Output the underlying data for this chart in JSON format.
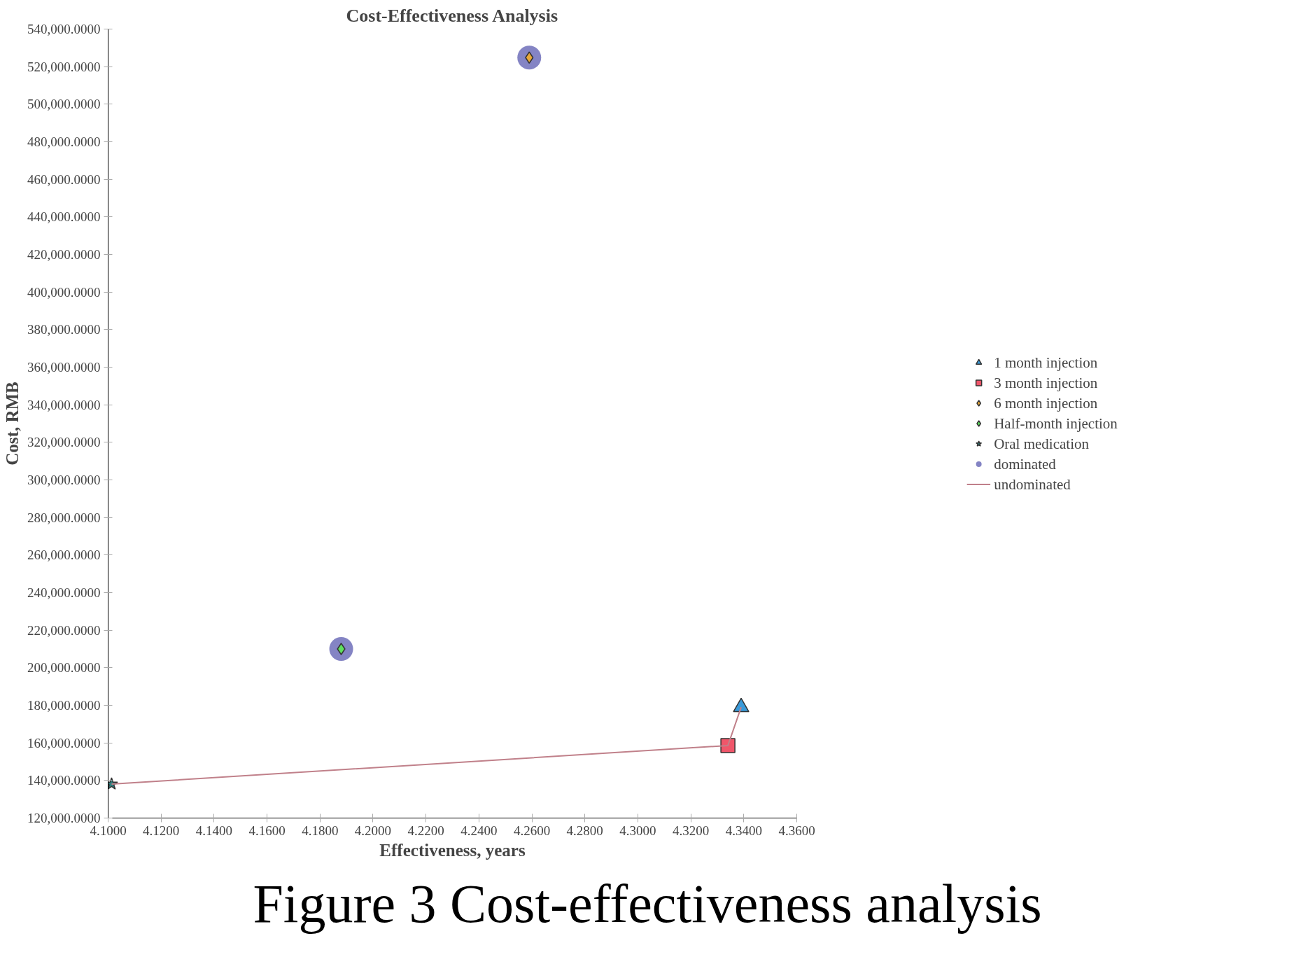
{
  "chart_data": {
    "type": "scatter",
    "title": "Cost-Effectiveness Analysis",
    "xlabel": "Effectiveness, years",
    "ylabel": "Cost, RMB",
    "annotations": [
      "Figure 3 Cost-effectiveness analysis"
    ],
    "legend": "right",
    "grid": false,
    "xlim": [
      4.1,
      4.36
    ],
    "xticks": [
      {
        "value": 4.1,
        "label": "4.1000"
      },
      {
        "value": 4.12,
        "label": "4.1200"
      },
      {
        "value": 4.14,
        "label": "4.1400"
      },
      {
        "value": 4.16,
        "label": "4.1600"
      },
      {
        "value": 4.18,
        "label": "4.1800"
      },
      {
        "value": 4.2,
        "label": "4.2000"
      },
      {
        "value": 4.22,
        "label": "4.2200"
      },
      {
        "value": 4.24,
        "label": "4.2400"
      },
      {
        "value": 4.26,
        "label": "4.2600"
      },
      {
        "value": 4.28,
        "label": "4.2800"
      },
      {
        "value": 4.3,
        "label": "4.3000"
      },
      {
        "value": 4.32,
        "label": "4.3200"
      },
      {
        "value": 4.34,
        "label": "4.3400"
      },
      {
        "value": 4.36,
        "label": "4.3600"
      }
    ],
    "ylim": [
      120000,
      540000
    ],
    "yticks": [
      {
        "value": 120000,
        "label": "120,000.0000"
      },
      {
        "value": 140000,
        "label": "140,000.0000"
      },
      {
        "value": 160000,
        "label": "160,000.0000"
      },
      {
        "value": 180000,
        "label": "180,000.0000"
      },
      {
        "value": 200000,
        "label": "200,000.0000"
      },
      {
        "value": 220000,
        "label": "220,000.0000"
      },
      {
        "value": 240000,
        "label": "240,000.0000"
      },
      {
        "value": 260000,
        "label": "260,000.0000"
      },
      {
        "value": 280000,
        "label": "280,000.0000"
      },
      {
        "value": 300000,
        "label": "300,000.0000"
      },
      {
        "value": 320000,
        "label": "320,000.0000"
      },
      {
        "value": 340000,
        "label": "340,000.0000"
      },
      {
        "value": 360000,
        "label": "360,000.0000"
      },
      {
        "value": 380000,
        "label": "380,000.0000"
      },
      {
        "value": 400000,
        "label": "400,000.0000"
      },
      {
        "value": 420000,
        "label": "420,000.0000"
      },
      {
        "value": 440000,
        "label": "440,000.0000"
      },
      {
        "value": 460000,
        "label": "460,000.0000"
      },
      {
        "value": 480000,
        "label": "480,000.0000"
      },
      {
        "value": 500000,
        "label": "500,000.0000"
      },
      {
        "value": 520000,
        "label": "520,000.0000"
      },
      {
        "value": 540000,
        "label": "540,000.0000"
      }
    ],
    "series": [
      {
        "name": "1 month injection",
        "color": "#3a9ad9",
        "marker": "triangle",
        "x": [
          4.339
        ],
        "values": [
          179000
        ]
      },
      {
        "name": "3 month injection",
        "color": "#f0566a",
        "marker": "square",
        "x": [
          4.334
        ],
        "values": [
          158600
        ]
      },
      {
        "name": "6 month injection",
        "color": "#e8a838",
        "marker": "diamond",
        "x": [
          4.259
        ],
        "values": [
          524800
        ]
      },
      {
        "name": "Half-month injection",
        "color": "#5ee05e",
        "marker": "diamond",
        "x": [
          4.188
        ],
        "values": [
          210000
        ]
      },
      {
        "name": "Oral medication",
        "color": "#2e7d7d",
        "marker": "star",
        "x": [
          4.1013
        ],
        "values": [
          138100
        ]
      },
      {
        "name": "dominated",
        "color": "#8484c4",
        "marker": "circle",
        "x": [
          4.259,
          4.188
        ],
        "values": [
          524800,
          210000
        ]
      },
      {
        "name": "undominated",
        "type": "line",
        "color": "#c0808a",
        "marker": "none",
        "line_style": "solid",
        "x": [
          4.1013,
          4.334,
          4.339
        ],
        "values": [
          138100,
          158600,
          179000
        ]
      }
    ]
  }
}
